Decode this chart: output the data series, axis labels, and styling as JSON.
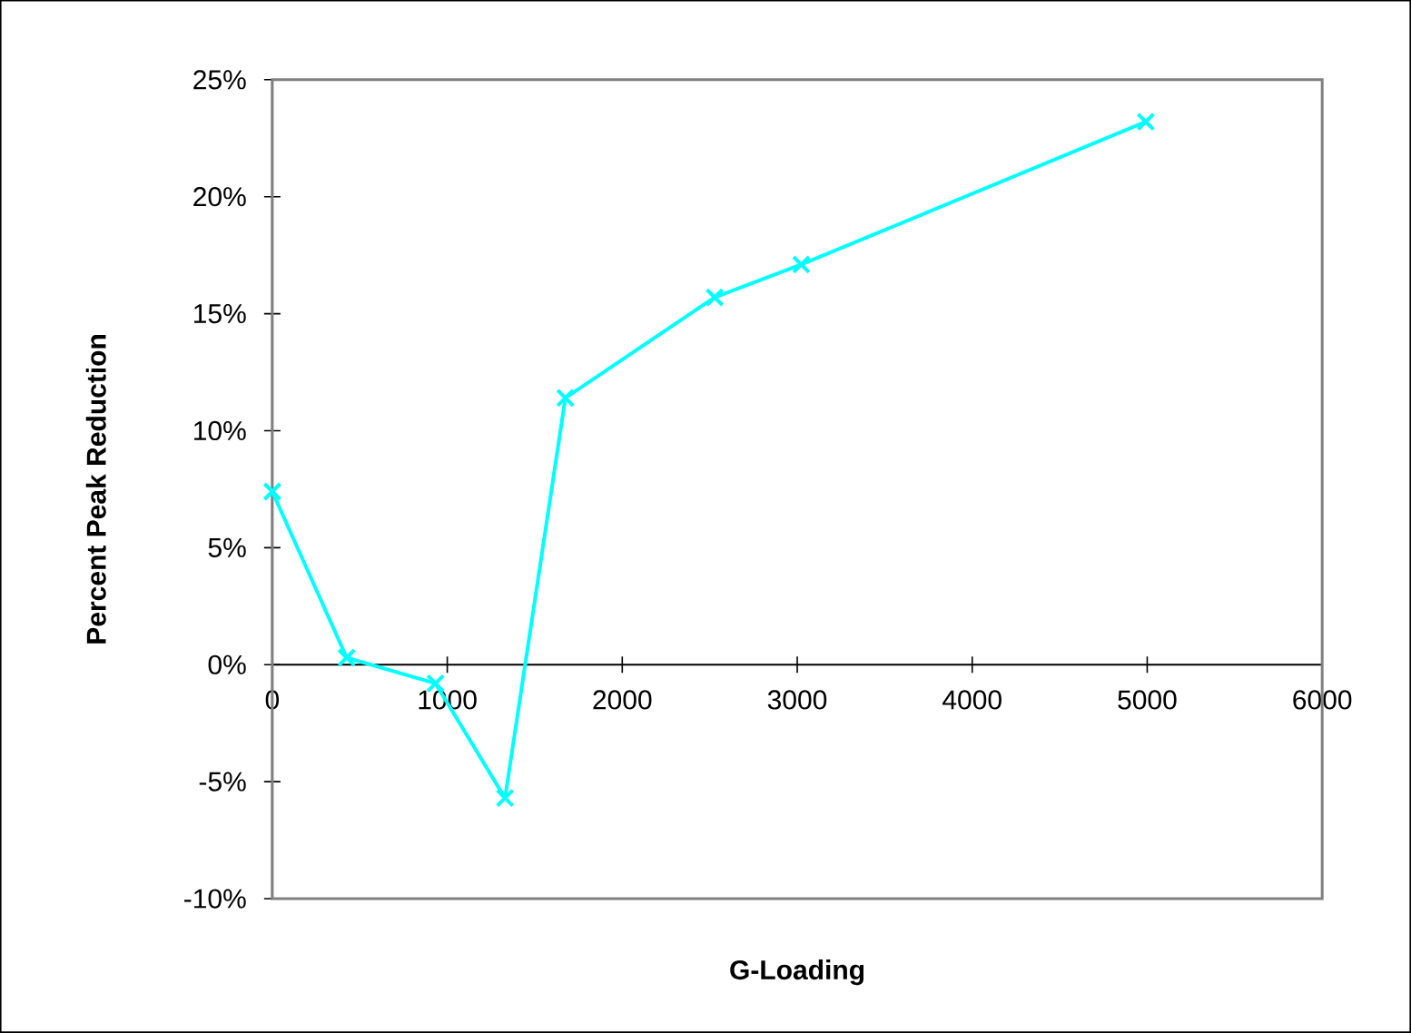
{
  "chart_data": {
    "type": "line",
    "xlabel": "G-Loading",
    "ylabel": "Percent Peak Reduction",
    "x": [
      0,
      425,
      933,
      1330,
      1675,
      2528,
      3023,
      4992
    ],
    "series": [
      {
        "color": "#00ffff",
        "values": [
          7.4,
          0.3,
          -0.8,
          -5.7,
          11.4,
          15.7,
          17.1,
          23.2
        ]
      }
    ],
    "xlim": [
      0,
      6000
    ],
    "xticks": [
      0,
      1000,
      2000,
      3000,
      4000,
      5000,
      6000
    ],
    "ylim": [
      -10,
      25
    ],
    "yticks": [
      {
        "value": -10,
        "label": "-10%"
      },
      {
        "value": -5,
        "label": "-5%"
      },
      {
        "value": 0,
        "label": "0%"
      },
      {
        "value": 5,
        "label": "5%"
      },
      {
        "value": 10,
        "label": "10%"
      },
      {
        "value": 15,
        "label": "15%"
      },
      {
        "value": 20,
        "label": "20%"
      },
      {
        "value": 25,
        "label": "25%"
      }
    ],
    "marker": "cross",
    "line_style": "solid",
    "grid": false
  }
}
